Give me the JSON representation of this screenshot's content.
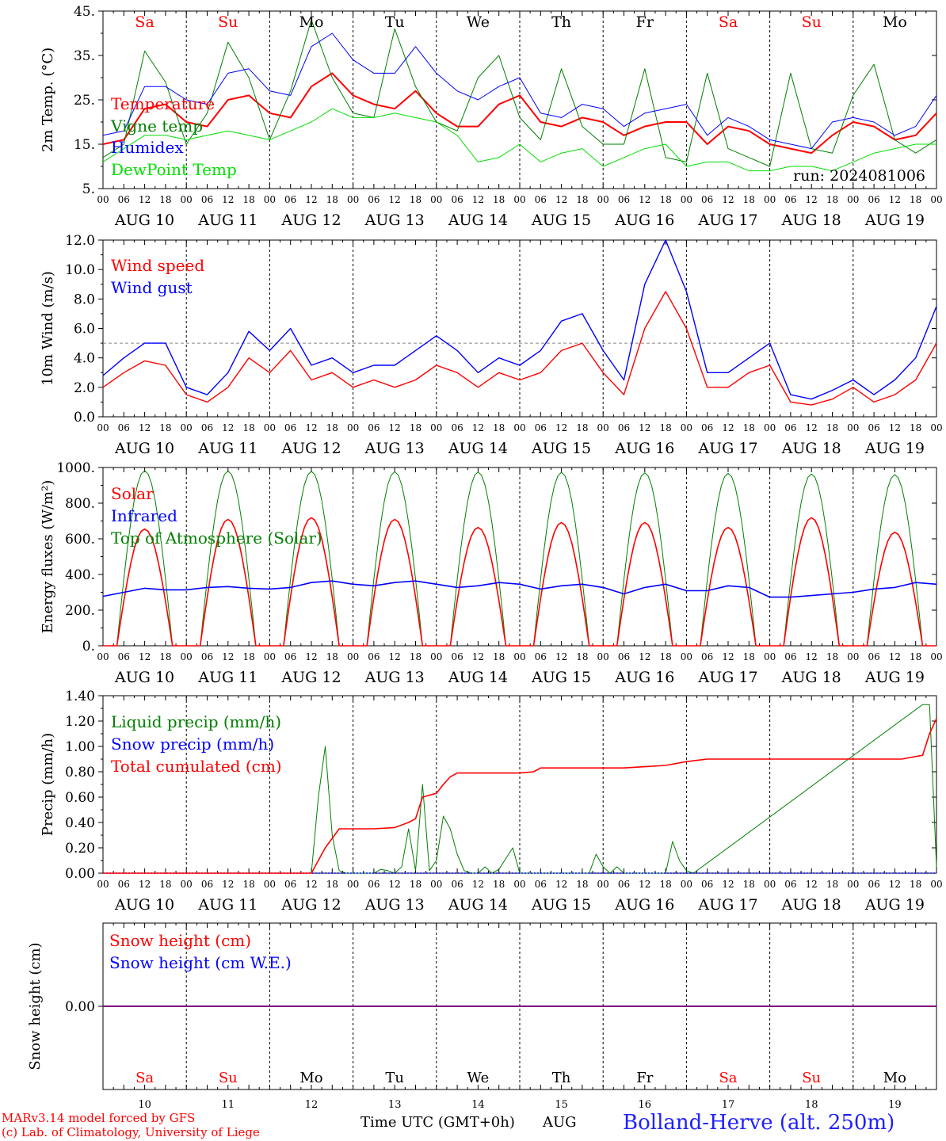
{
  "run_label": "run: 2024081006",
  "footer": {
    "model": "MARv3.14 model forced by GFS",
    "credit": "(c) Lab. of Climatology, University of Liege",
    "time_axis": "Time UTC (GMT+0h)",
    "month": "AUG",
    "station": "Bolland-Herve (alt. 250m)"
  },
  "day_names": [
    "Sa",
    "Su",
    "Mo",
    "Tu",
    "We",
    "Th",
    "Fr",
    "Sa",
    "Su",
    "Mo"
  ],
  "day_numbers": [
    "10",
    "11",
    "12",
    "13",
    "14",
    "15",
    "16",
    "17",
    "18",
    "19"
  ],
  "date_labels": [
    "AUG 10",
    "AUG 11",
    "AUG 12",
    "AUG 13",
    "AUG 14",
    "AUG 15",
    "AUG 16",
    "AUG 17",
    "AUG 18",
    "AUG 19"
  ],
  "hour_ticks": [
    "00",
    "06",
    "12",
    "18"
  ],
  "colors": {
    "red": "#ff0000",
    "green": "#008000",
    "blue": "#0000ff",
    "light_green": "#00e000",
    "purple": "#800080",
    "weekend": "#ff0000"
  },
  "chart_data": [
    {
      "type": "line",
      "ylabel": "2m Temp. (°C)",
      "ylim": [
        5,
        45
      ],
      "yticks": [
        "5.",
        "15.",
        "25.",
        "35.",
        "45."
      ],
      "x_unit": "hours from 2024-08-10 00 UTC",
      "x": [
        0,
        6,
        12,
        18,
        24,
        30,
        36,
        42,
        48,
        54,
        60,
        66,
        72,
        78,
        84,
        90,
        96,
        102,
        108,
        114,
        120,
        126,
        132,
        138,
        144,
        150,
        156,
        162,
        168,
        174,
        180,
        186,
        192,
        198,
        204,
        210,
        216,
        222,
        228,
        234,
        240
      ],
      "series": [
        {
          "name": "Temperature",
          "color": "red",
          "values": [
            15,
            16,
            23,
            24,
            20,
            19,
            25,
            26,
            22,
            21,
            28,
            31,
            26,
            24,
            23,
            27,
            22,
            19,
            19,
            24,
            26,
            20,
            19,
            21,
            20,
            17,
            19,
            20,
            20,
            15,
            19,
            18,
            15,
            14,
            13,
            17,
            20,
            19,
            16,
            17,
            22
          ]
        },
        {
          "name": "Vigne temp",
          "color": "green",
          "values": [
            12,
            15,
            36,
            29,
            15,
            22,
            38,
            30,
            16,
            27,
            43,
            30,
            22,
            21,
            41,
            28,
            20,
            18,
            30,
            35,
            21,
            16,
            32,
            19,
            15,
            15,
            32,
            12,
            11,
            31,
            14,
            12,
            10,
            31,
            14,
            13,
            26,
            33,
            16,
            13,
            16
          ]
        },
        {
          "name": "Humidex",
          "color": "blue",
          "values": [
            17,
            18,
            28,
            28,
            25,
            24,
            31,
            32,
            27,
            26,
            37,
            40,
            34,
            31,
            31,
            37,
            31,
            27,
            25,
            28,
            30,
            22,
            21,
            24,
            23,
            19,
            22,
            23,
            24,
            17,
            21,
            19,
            16,
            15,
            14,
            20,
            21,
            20,
            17,
            19,
            26
          ]
        },
        {
          "name": "DewPoint Temp",
          "color": "light_green",
          "values": [
            11,
            14,
            17,
            17,
            16,
            17,
            18,
            17,
            16,
            18,
            20,
            23,
            21,
            21,
            22,
            21,
            20,
            17,
            11,
            12,
            15,
            11,
            13,
            14,
            10,
            12,
            14,
            15,
            10,
            11,
            11,
            9,
            9,
            10,
            10,
            9,
            11,
            13,
            14,
            15,
            15
          ]
        }
      ]
    },
    {
      "type": "line",
      "ylabel": "10m Wind (m/s)",
      "ylim": [
        0,
        12
      ],
      "yticks": [
        "0.0",
        "2.0",
        "4.0",
        "6.0",
        "8.0",
        "10.0",
        "12.0"
      ],
      "reference_line": 5,
      "x": [
        0,
        6,
        12,
        18,
        24,
        30,
        36,
        42,
        48,
        54,
        60,
        66,
        72,
        78,
        84,
        90,
        96,
        102,
        108,
        114,
        120,
        126,
        132,
        138,
        144,
        150,
        156,
        162,
        168,
        174,
        180,
        186,
        192,
        198,
        204,
        210,
        216,
        222,
        228,
        234,
        240
      ],
      "series": [
        {
          "name": "Wind speed",
          "color": "red",
          "values": [
            2.0,
            3.0,
            3.8,
            3.5,
            1.5,
            1.0,
            2.0,
            4.0,
            3.0,
            4.5,
            2.5,
            3.0,
            2.0,
            2.5,
            2.0,
            2.5,
            3.5,
            3.0,
            2.0,
            3.0,
            2.5,
            3.0,
            4.5,
            5.0,
            3.0,
            1.5,
            6.0,
            8.5,
            6.0,
            2.0,
            2.0,
            3.0,
            3.5,
            1.0,
            0.8,
            1.2,
            2.0,
            1.0,
            1.5,
            2.5,
            5.0
          ]
        },
        {
          "name": "Wind gust",
          "color": "blue",
          "values": [
            2.8,
            4.0,
            5.0,
            5.0,
            2.0,
            1.5,
            3.0,
            5.8,
            4.5,
            6.0,
            3.5,
            4.0,
            3.0,
            3.5,
            3.5,
            4.5,
            5.5,
            4.5,
            3.0,
            4.0,
            3.5,
            4.5,
            6.5,
            7.0,
            4.5,
            2.5,
            9.0,
            12.0,
            8.5,
            3.0,
            3.0,
            4.0,
            5.0,
            1.5,
            1.2,
            1.8,
            2.5,
            1.5,
            2.5,
            4.0,
            7.5
          ]
        }
      ]
    },
    {
      "type": "line",
      "ylabel": "Energy fluxes (W/m²)",
      "ylim": [
        0,
        1100
      ],
      "yticks": [
        "0.",
        "200.",
        "400.",
        "600.",
        "800.",
        "1000."
      ],
      "x_unit": "hours from 2024-08-10 00 UTC",
      "daily_peaks_toa": [
        1080,
        1078,
        1076,
        1074,
        1072,
        1070,
        1067,
        1064,
        1060,
        1056
      ],
      "daily_peaks_solar": [
        720,
        780,
        790,
        780,
        730,
        760,
        760,
        730,
        790,
        700
      ],
      "series": [
        {
          "name": "Solar",
          "color": "red"
        },
        {
          "name": "Infrared",
          "color": "blue",
          "values": [
            305,
            330,
            355,
            345,
            345,
            360,
            365,
            355,
            350,
            360,
            390,
            400,
            380,
            370,
            390,
            400,
            380,
            360,
            370,
            390,
            380,
            350,
            370,
            380,
            360,
            320,
            360,
            380,
            340,
            340,
            370,
            360,
            300,
            300,
            310,
            320,
            330,
            350,
            360,
            390,
            380
          ]
        },
        {
          "name": "Top of Atmosphere (Solar)",
          "color": "green"
        }
      ]
    },
    {
      "type": "line",
      "ylabel": "Precip (mm/h)",
      "ylim": [
        0,
        1.4
      ],
      "yticks": [
        "0.00",
        "0.20",
        "0.40",
        "0.60",
        "0.80",
        "1.00",
        "1.20",
        "1.40"
      ],
      "series": [
        {
          "name": "Liquid precip (mm/h)",
          "color": "green",
          "x": [
            0,
            60,
            62,
            64,
            66,
            68,
            70,
            72,
            78,
            80,
            82,
            84,
            86,
            88,
            90,
            92,
            94,
            96,
            98,
            100,
            102,
            104,
            106,
            108,
            110,
            112,
            114,
            118,
            120,
            122,
            140,
            142,
            144,
            146,
            148,
            150,
            162,
            164,
            166,
            168,
            170,
            236,
            238,
            240
          ],
          "values": [
            0,
            0,
            0.6,
            1.0,
            0.3,
            0.02,
            0,
            0,
            0,
            0.03,
            0.02,
            0,
            0.05,
            0.35,
            0.02,
            0.7,
            0.02,
            0.1,
            0.45,
            0.35,
            0.15,
            0.02,
            0,
            0,
            0.05,
            0,
            0.03,
            0.2,
            0,
            0,
            0,
            0.15,
            0.05,
            0,
            0.05,
            0,
            0,
            0.25,
            0.1,
            0.02,
            0,
            1.33,
            1.33,
            0.05
          ]
        },
        {
          "name": "Snow precip (mm/h)",
          "color": "blue",
          "values_constant": 0
        },
        {
          "name": "Total cumulated (cm)",
          "color": "red",
          "x": [
            0,
            60,
            64,
            68,
            72,
            78,
            84,
            88,
            90,
            92,
            96,
            98,
            100,
            102,
            104,
            108,
            120,
            124,
            126,
            132,
            150,
            156,
            162,
            168,
            174,
            230,
            232,
            236,
            238,
            240
          ],
          "values": [
            0,
            0,
            0.2,
            0.35,
            0.35,
            0.35,
            0.36,
            0.4,
            0.43,
            0.6,
            0.63,
            0.7,
            0.76,
            0.79,
            0.79,
            0.79,
            0.79,
            0.8,
            0.83,
            0.83,
            0.83,
            0.84,
            0.85,
            0.88,
            0.9,
            0.9,
            0.91,
            0.93,
            1.1,
            1.22
          ]
        }
      ]
    },
    {
      "type": "line",
      "ylabel": "Snow height (cm)",
      "yticks": [
        "0.00"
      ],
      "series": [
        {
          "name": "Snow height (cm)",
          "color": "red",
          "values_constant": 0
        },
        {
          "name": "Snow height (cm W.E.)",
          "color": "blue",
          "values_constant": 0
        }
      ]
    }
  ]
}
